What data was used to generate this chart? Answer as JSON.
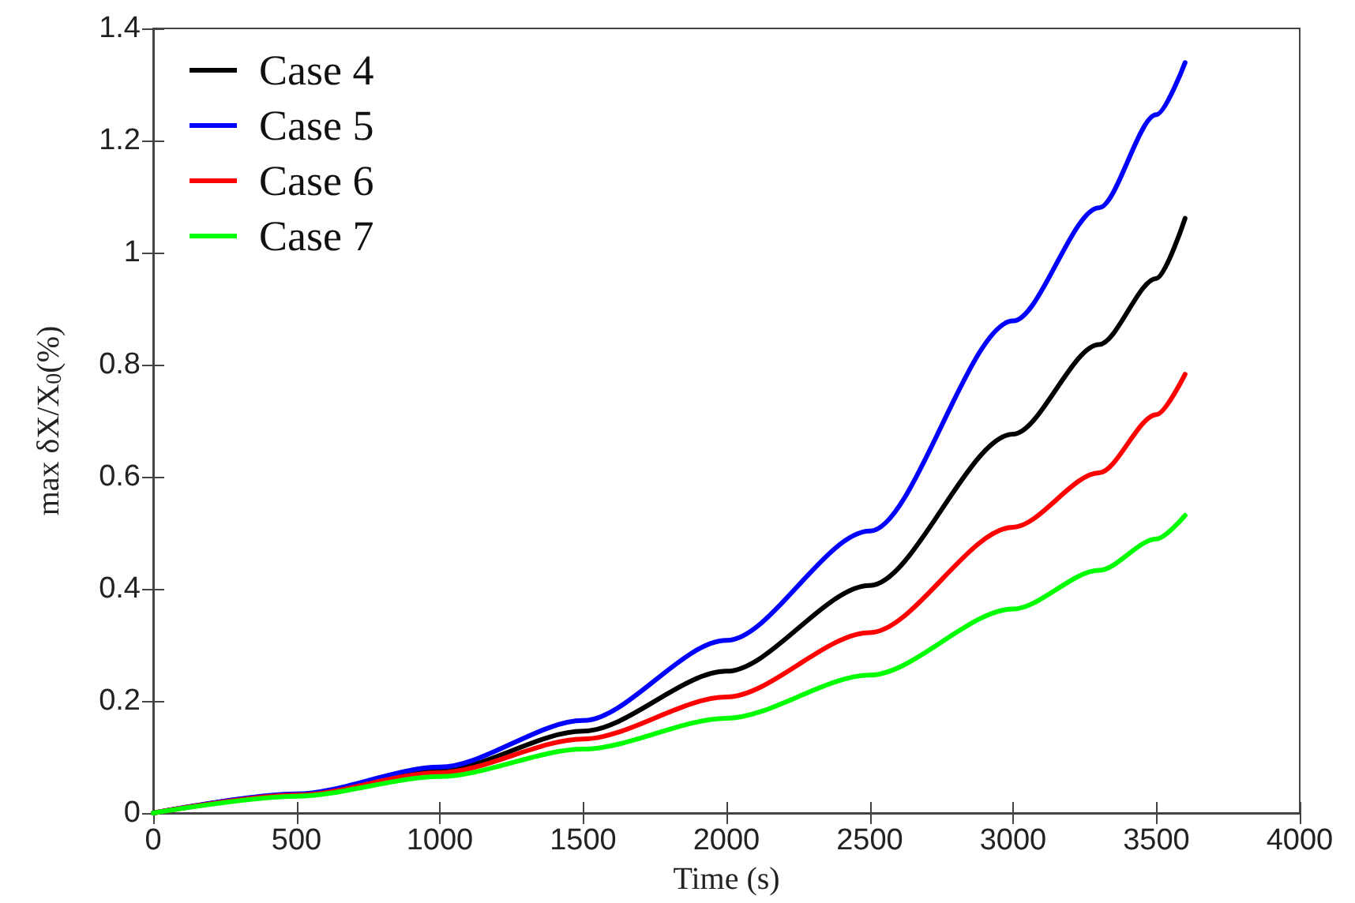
{
  "chart_data": {
    "type": "line",
    "xlabel": "Time (s)",
    "ylabel": "max δX/X$_{0}$(%)",
    "x": [
      0,
      500,
      1000,
      1500,
      2000,
      2500,
      3000,
      3300,
      3500,
      3600
    ],
    "series": [
      {
        "name": "Case 4",
        "color": "#000000",
        "values": [
          0,
          0.033,
          0.076,
          0.146,
          0.253,
          0.406,
          0.676,
          0.836,
          0.954,
          1.061
        ]
      },
      {
        "name": "Case 5",
        "color": "#0000ff",
        "values": [
          0,
          0.034,
          0.082,
          0.165,
          0.308,
          0.503,
          0.878,
          1.08,
          1.246,
          1.339
        ]
      },
      {
        "name": "Case 6",
        "color": "#ff0000",
        "values": [
          0,
          0.032,
          0.072,
          0.132,
          0.207,
          0.322,
          0.51,
          0.607,
          0.711,
          0.783
        ]
      },
      {
        "name": "Case 7",
        "color": "#00ff00",
        "values": [
          0,
          0.03,
          0.065,
          0.114,
          0.169,
          0.246,
          0.364,
          0.433,
          0.489,
          0.531
        ]
      }
    ],
    "xlim": [
      0,
      4000
    ],
    "xticks": [
      0,
      500,
      1000,
      1500,
      2000,
      2500,
      3000,
      3500,
      4000
    ],
    "ylim": [
      0,
      1.4
    ],
    "yticks": [
      0,
      0.2,
      0.4,
      0.6,
      0.8,
      1,
      1.2,
      1.4
    ],
    "grid": false,
    "legend": "top left",
    "marker": "none",
    "line_style": "solid"
  }
}
